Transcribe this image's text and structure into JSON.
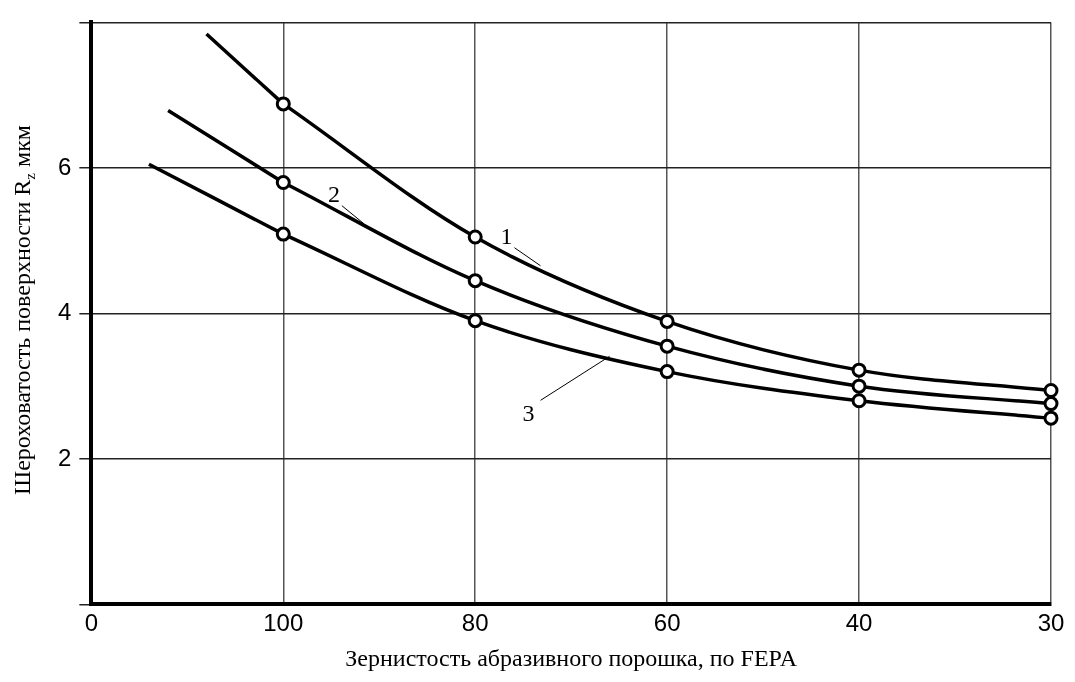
{
  "chart_data": {
    "type": "line",
    "xlabel": "Зернистость абразивного порошка, по FEPA",
    "ylabel": "Шероховатость поверхности R$_{z}$ мкм",
    "categories": [
      "0",
      null,
      null,
      null,
      null,
      null,
      null,
      null,
      null,
      null,
      "100",
      null,
      null,
      null,
      null,
      null,
      null,
      null,
      null,
      null,
      "80",
      null,
      null,
      null,
      null,
      null,
      null,
      null,
      null,
      null,
      "60",
      null,
      null,
      null,
      null,
      null,
      null,
      null,
      null,
      null,
      "40",
      null,
      null,
      null,
      null,
      null,
      null,
      null,
      null,
      null,
      "30"
    ],
    "ylim": [
      0,
      8
    ],
    "yticks": [
      {
        "value": 0,
        "label": null
      },
      2,
      4,
      6,
      {
        "value": 8,
        "label": null
      }
    ],
    "grid": true,
    "legend": false,
    "line_style": "solid",
    "series": [
      {
        "name": "1",
        "color": "#000000",
        "marker": "circle",
        "values": [
          null,
          null,
          null,
          null,
          null,
          null,
          null,
          null,
          null,
          null,
          6.88,
          null,
          null,
          null,
          null,
          null,
          null,
          null,
          null,
          null,
          5.05,
          null,
          null,
          null,
          null,
          null,
          null,
          null,
          null,
          null,
          3.89,
          null,
          null,
          null,
          null,
          null,
          null,
          null,
          null,
          null,
          3.22,
          null,
          null,
          null,
          null,
          null,
          null,
          null,
          null,
          null,
          2.94
        ]
      },
      {
        "name": "2",
        "color": "#000000",
        "marker": "circle",
        "values": [
          null,
          null,
          null,
          null,
          null,
          null,
          null,
          null,
          null,
          null,
          5.8,
          null,
          null,
          null,
          null,
          null,
          null,
          null,
          null,
          null,
          4.45,
          null,
          null,
          null,
          null,
          null,
          null,
          null,
          null,
          null,
          3.55,
          null,
          null,
          null,
          null,
          null,
          null,
          null,
          null,
          null,
          3,
          null,
          null,
          null,
          null,
          null,
          null,
          null,
          null,
          null,
          2.76
        ]
      },
      {
        "name": "3",
        "color": "#000000",
        "marker": "circle",
        "values": [
          null,
          null,
          null,
          null,
          null,
          null,
          null,
          null,
          null,
          null,
          5.09,
          null,
          null,
          null,
          null,
          null,
          null,
          null,
          null,
          null,
          3.9,
          null,
          null,
          null,
          null,
          null,
          null,
          null,
          null,
          null,
          3.2,
          null,
          null,
          null,
          null,
          null,
          null,
          null,
          null,
          null,
          2.8,
          null,
          null,
          null,
          null,
          null,
          null,
          null,
          null,
          null,
          2.56
        ]
      },
      {
        "color": "#000000",
        "marker": "none",
        "values": [
          null,
          null,
          null,
          null,
          null,
          null,
          7.84,
          null,
          null,
          null,
          6.88,
          null,
          null,
          null,
          null,
          null,
          null,
          null,
          null,
          null,
          null,
          null,
          null,
          null,
          null,
          null,
          null,
          null,
          null,
          null,
          null,
          null,
          null,
          null,
          null,
          null,
          null,
          null,
          null,
          null,
          null,
          null,
          null,
          null,
          null,
          null,
          null,
          null,
          null,
          null,
          null
        ]
      },
      {
        "color": "#000000",
        "marker": "none",
        "values": [
          null,
          null,
          null,
          null,
          6.79,
          null,
          null,
          null,
          null,
          null,
          5.8,
          null,
          null,
          null,
          null,
          null,
          null,
          null,
          null,
          null,
          null,
          null,
          null,
          null,
          null,
          null,
          null,
          null,
          null,
          null,
          null,
          null,
          null,
          null,
          null,
          null,
          null,
          null,
          null,
          null,
          null,
          null,
          null,
          null,
          null,
          null,
          null,
          null,
          null,
          null,
          null
        ]
      },
      {
        "color": "#000000",
        "marker": "none",
        "values": [
          null,
          null,
          null,
          6.05,
          null,
          null,
          null,
          null,
          null,
          null,
          5.09,
          null,
          null,
          null,
          null,
          null,
          null,
          null,
          null,
          null,
          null,
          null,
          null,
          null,
          null,
          null,
          null,
          null,
          null,
          null,
          null,
          null,
          null,
          null,
          null,
          null,
          null,
          null,
          null,
          null,
          null,
          null,
          null,
          null,
          null,
          null,
          null,
          null,
          null,
          null,
          null
        ]
      }
    ]
  }
}
